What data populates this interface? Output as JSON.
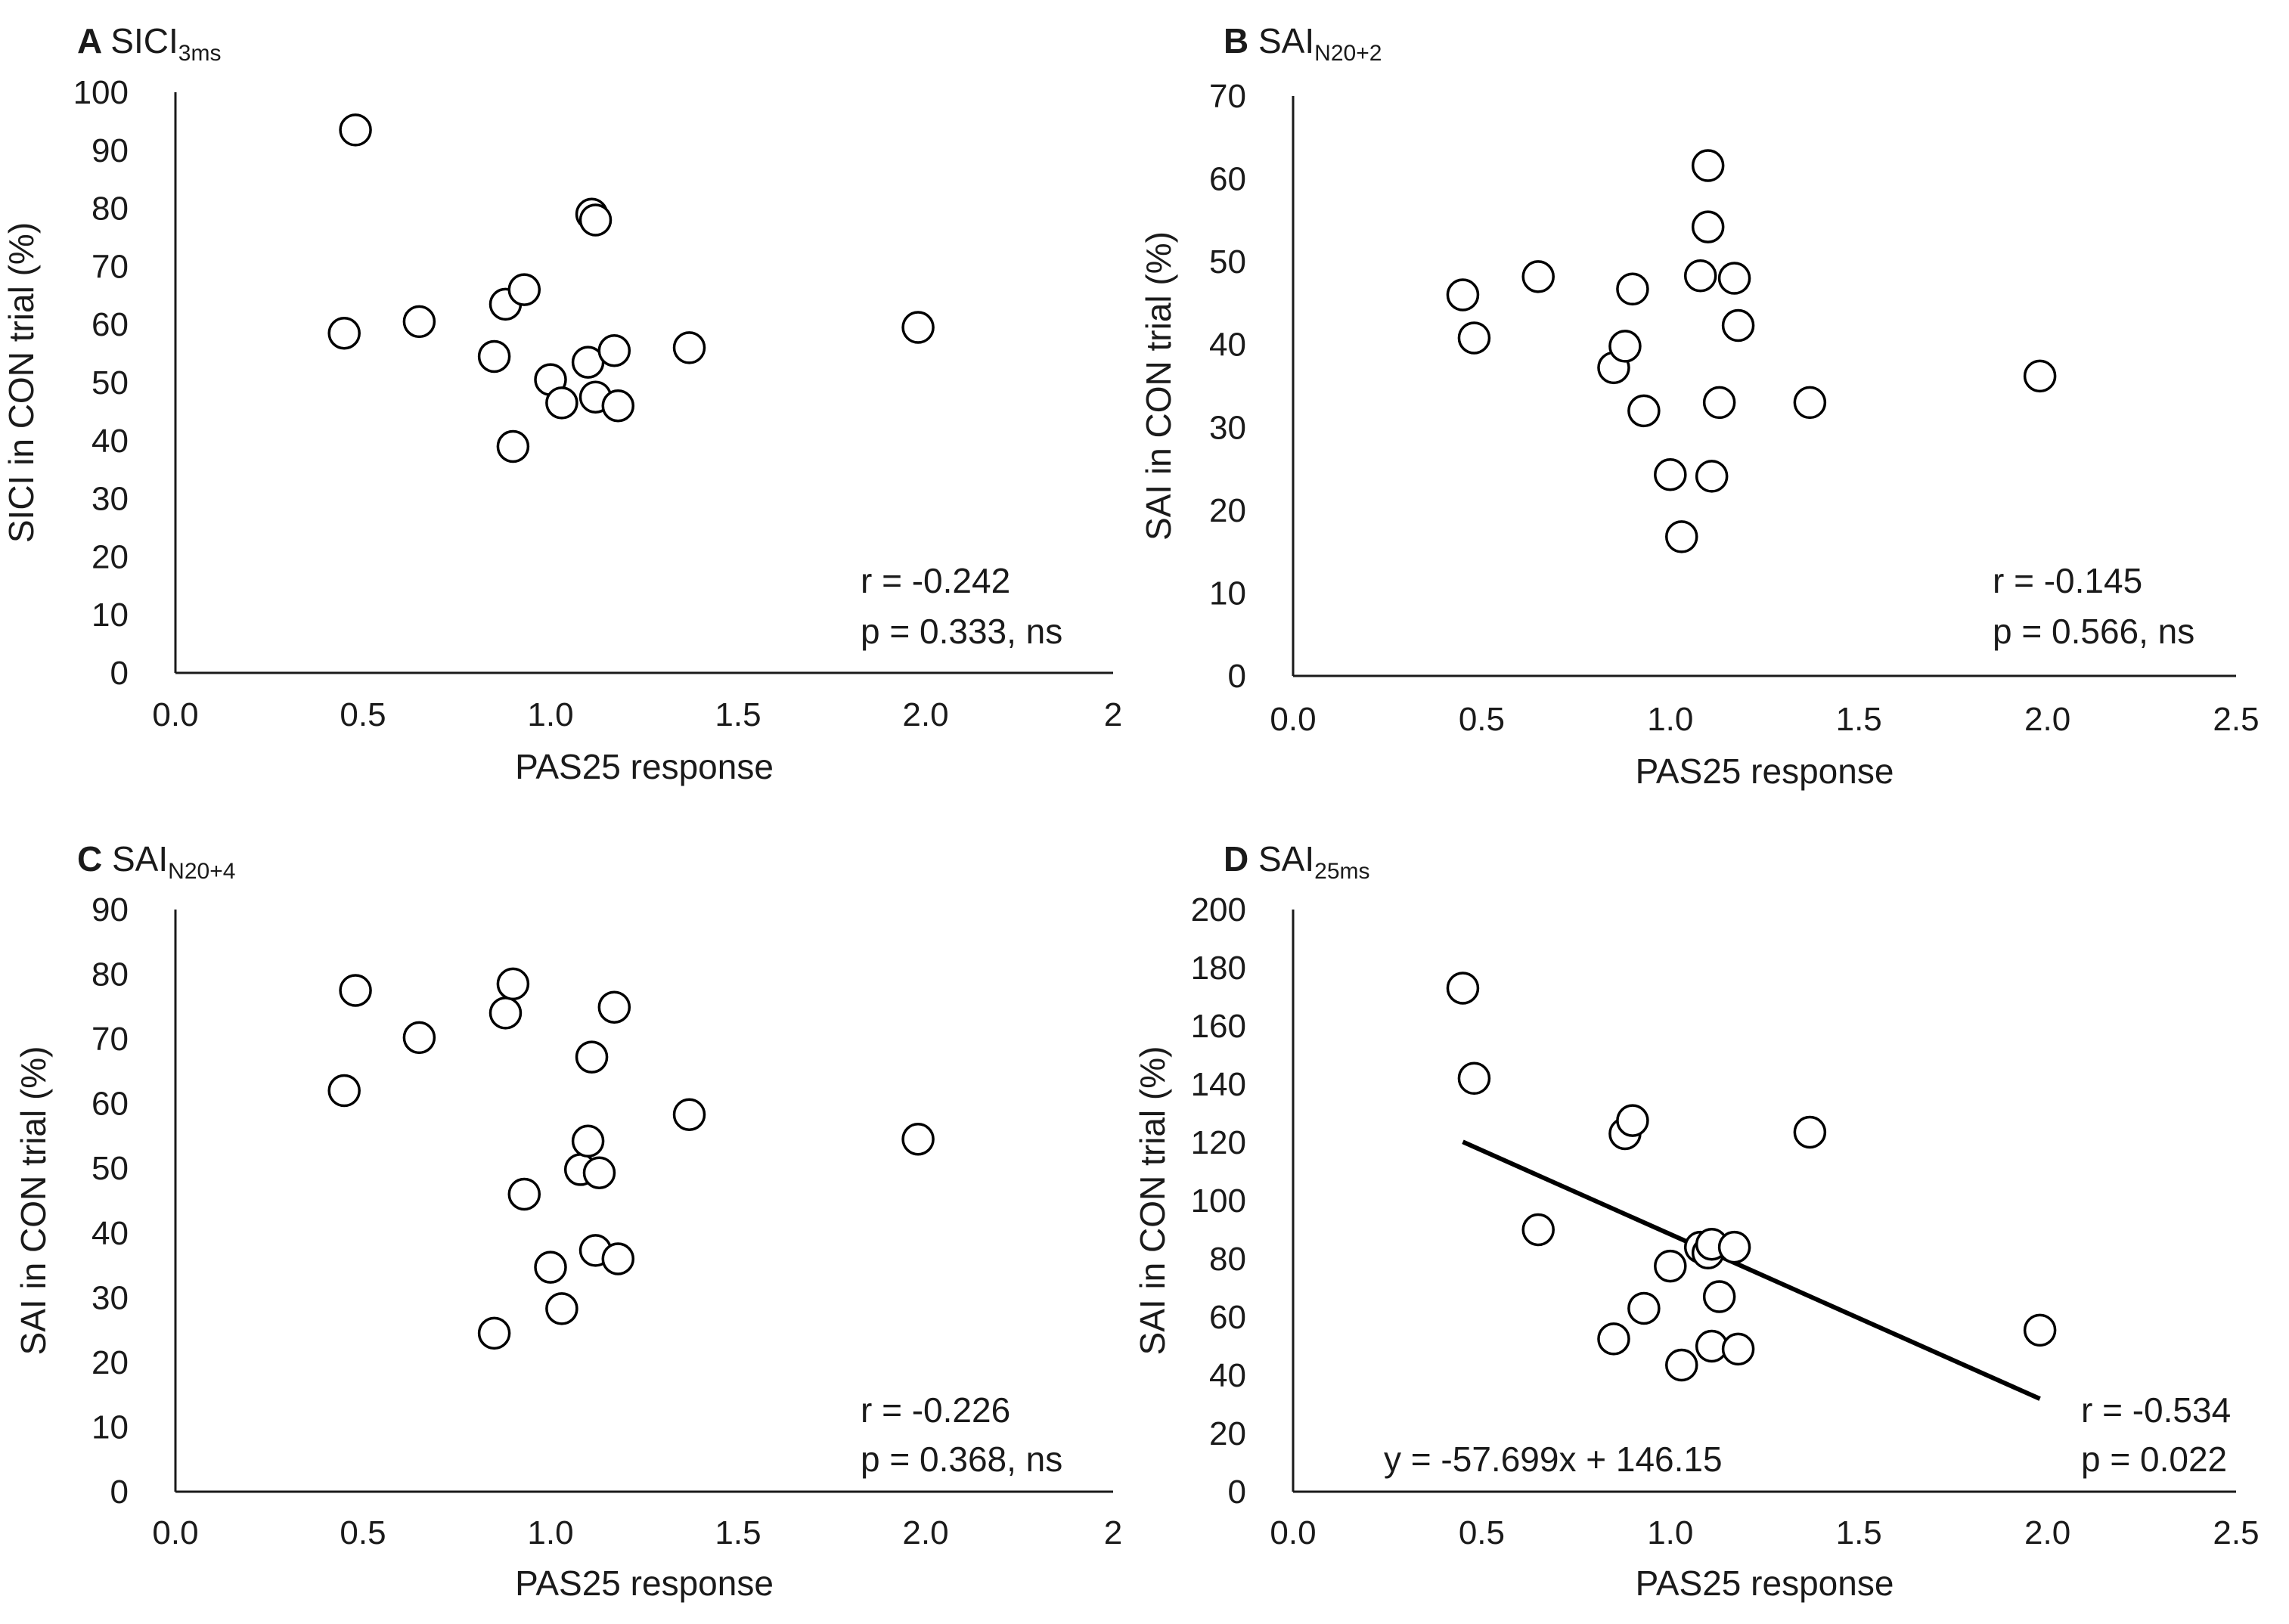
{
  "figure": {
    "chart_data": [
      {
        "type": "scatter",
        "panel": "A",
        "title": "SICI",
        "title_subscript": "3ms",
        "xlabel": "PAS25 response",
        "ylabel": "SICI in CON trial (%)",
        "xlim": [
          0,
          2.5
        ],
        "ylim": [
          0,
          100
        ],
        "xticks": [
          "0.0",
          "0.5",
          "1.0",
          "1.5",
          "2.0",
          "2"
        ],
        "yticks": [
          "0",
          "10",
          "20",
          "30",
          "40",
          "50",
          "60",
          "70",
          "80",
          "90",
          "100"
        ],
        "points": [
          {
            "x": 0.48,
            "y": 93.5
          },
          {
            "x": 0.45,
            "y": 58.5
          },
          {
            "x": 0.65,
            "y": 60.5
          },
          {
            "x": 0.85,
            "y": 54.5
          },
          {
            "x": 0.88,
            "y": 63.5
          },
          {
            "x": 0.93,
            "y": 66
          },
          {
            "x": 0.9,
            "y": 39
          },
          {
            "x": 1.0,
            "y": 50.5
          },
          {
            "x": 1.03,
            "y": 46.5
          },
          {
            "x": 1.1,
            "y": 53.5
          },
          {
            "x": 1.12,
            "y": 47.5
          },
          {
            "x": 1.17,
            "y": 55.5
          },
          {
            "x": 1.18,
            "y": 46
          },
          {
            "x": 1.11,
            "y": 79
          },
          {
            "x": 1.12,
            "y": 78
          },
          {
            "x": 1.37,
            "y": 56
          },
          {
            "x": 1.98,
            "y": 59.5
          }
        ],
        "stats": [
          "r = -0.242",
          "p = 0.333, ns"
        ]
      },
      {
        "type": "scatter",
        "panel": "B",
        "title": "SAI",
        "title_subscript": "N20+2",
        "xlabel": "PAS25 response",
        "ylabel": "SAI in CON trial (%)",
        "xlim": [
          0,
          2.5
        ],
        "ylim": [
          0,
          70
        ],
        "xticks": [
          "0.0",
          "0.5",
          "1.0",
          "1.5",
          "2.0",
          "2.5"
        ],
        "yticks": [
          "0",
          "10",
          "20",
          "30",
          "40",
          "50",
          "60",
          "70"
        ],
        "points": [
          {
            "x": 0.45,
            "y": 46
          },
          {
            "x": 0.48,
            "y": 40.8
          },
          {
            "x": 0.65,
            "y": 48.2
          },
          {
            "x": 0.85,
            "y": 37.2
          },
          {
            "x": 0.88,
            "y": 39.8
          },
          {
            "x": 0.9,
            "y": 46.7
          },
          {
            "x": 0.93,
            "y": 32
          },
          {
            "x": 1.0,
            "y": 24.3
          },
          {
            "x": 1.03,
            "y": 16.8
          },
          {
            "x": 1.08,
            "y": 48.3
          },
          {
            "x": 1.1,
            "y": 54.2
          },
          {
            "x": 1.1,
            "y": 61.6
          },
          {
            "x": 1.11,
            "y": 24.1
          },
          {
            "x": 1.13,
            "y": 33
          },
          {
            "x": 1.17,
            "y": 48
          },
          {
            "x": 1.18,
            "y": 42.3
          },
          {
            "x": 1.37,
            "y": 33
          },
          {
            "x": 1.98,
            "y": 36.2
          }
        ],
        "stats": [
          "r = -0.145",
          "p = 0.566, ns"
        ]
      },
      {
        "type": "scatter",
        "panel": "C",
        "title": "SAI",
        "title_subscript": "N20+4",
        "xlabel": "PAS25 response",
        "ylabel": "SAI in CON trial (%)",
        "xlim": [
          0,
          2.5
        ],
        "ylim": [
          0,
          90
        ],
        "xticks": [
          "0.0",
          "0.5",
          "1.0",
          "1.5",
          "2.0",
          "2"
        ],
        "yticks": [
          "0",
          "10",
          "20",
          "30",
          "40",
          "50",
          "60",
          "70",
          "80",
          "90"
        ],
        "points": [
          {
            "x": 0.48,
            "y": 77.5
          },
          {
            "x": 0.45,
            "y": 62
          },
          {
            "x": 0.65,
            "y": 70.2
          },
          {
            "x": 0.85,
            "y": 24.5
          },
          {
            "x": 0.88,
            "y": 74
          },
          {
            "x": 0.9,
            "y": 78.5
          },
          {
            "x": 0.93,
            "y": 46
          },
          {
            "x": 1.0,
            "y": 34.7
          },
          {
            "x": 1.03,
            "y": 28.3
          },
          {
            "x": 1.08,
            "y": 49.8
          },
          {
            "x": 1.1,
            "y": 54.2
          },
          {
            "x": 1.11,
            "y": 67.2
          },
          {
            "x": 1.12,
            "y": 37.3
          },
          {
            "x": 1.13,
            "y": 49.3
          },
          {
            "x": 1.17,
            "y": 74.9
          },
          {
            "x": 1.18,
            "y": 36
          },
          {
            "x": 1.37,
            "y": 58.3
          },
          {
            "x": 1.98,
            "y": 54.5
          }
        ],
        "stats": [
          "r = -0.226",
          "p = 0.368, ns"
        ]
      },
      {
        "type": "scatter",
        "panel": "D",
        "title": "SAI",
        "title_subscript": "25ms",
        "xlabel": "PAS25 response",
        "ylabel": "SAI in CON trial (%)",
        "xlim": [
          0,
          2.5
        ],
        "ylim": [
          0,
          200
        ],
        "xticks": [
          "0.0",
          "0.5",
          "1.0",
          "1.5",
          "2.0",
          "2.5"
        ],
        "yticks": [
          "0",
          "20",
          "40",
          "60",
          "80",
          "100",
          "120",
          "140",
          "160",
          "180",
          "200"
        ],
        "points": [
          {
            "x": 0.45,
            "y": 173
          },
          {
            "x": 0.48,
            "y": 142
          },
          {
            "x": 0.65,
            "y": 90
          },
          {
            "x": 0.85,
            "y": 52.5
          },
          {
            "x": 0.88,
            "y": 123
          },
          {
            "x": 0.9,
            "y": 127.5
          },
          {
            "x": 0.93,
            "y": 63
          },
          {
            "x": 1.0,
            "y": 77.5
          },
          {
            "x": 1.03,
            "y": 43.5
          },
          {
            "x": 1.08,
            "y": 84
          },
          {
            "x": 1.1,
            "y": 82
          },
          {
            "x": 1.11,
            "y": 85
          },
          {
            "x": 1.11,
            "y": 50
          },
          {
            "x": 1.13,
            "y": 67
          },
          {
            "x": 1.17,
            "y": 84
          },
          {
            "x": 1.18,
            "y": 49
          },
          {
            "x": 1.37,
            "y": 123.5
          },
          {
            "x": 1.98,
            "y": 55.5
          }
        ],
        "trendline": {
          "x_start": 0.45,
          "x_end": 1.98,
          "slope": -57.699,
          "intercept": 146.15
        },
        "equation": "y = -57.699x + 146.15",
        "stats": [
          "r = -0.534",
          "p = 0.022"
        ]
      }
    ]
  }
}
